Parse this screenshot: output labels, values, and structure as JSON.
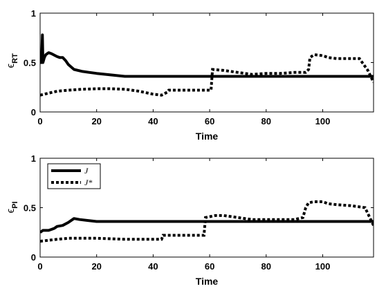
{
  "chart_data": [
    {
      "type": "line",
      "ylabel_symbol": "ϵ",
      "ylabel_sub": "RT",
      "xlabel": "Time",
      "xlim": [
        0,
        118
      ],
      "ylim": [
        0,
        1
      ],
      "xticks": [
        "0",
        "20",
        "40",
        "60",
        "80",
        "100"
      ],
      "yticks": [
        "0",
        "0.5",
        "1"
      ],
      "legend": false,
      "series": [
        {
          "style": "solid",
          "x": [
            0,
            0.5,
            0.8,
            1,
            1.5,
            2,
            3,
            4,
            6,
            7,
            8,
            9,
            10,
            12,
            15,
            20,
            25,
            30,
            40,
            60,
            80,
            100,
            118
          ],
          "y": [
            0.5,
            0.5,
            0.78,
            0.5,
            0.55,
            0.58,
            0.6,
            0.59,
            0.56,
            0.55,
            0.55,
            0.52,
            0.48,
            0.43,
            0.41,
            0.39,
            0.375,
            0.36,
            0.36,
            0.36,
            0.36,
            0.36,
            0.36
          ]
        },
        {
          "style": "dotted",
          "x": [
            0,
            3,
            6,
            10,
            15,
            20,
            25,
            30,
            35,
            40,
            43,
            45,
            45.5,
            52,
            55,
            60.5,
            61,
            65,
            70,
            75,
            80,
            85,
            90,
            94,
            95,
            95.5,
            97,
            100,
            102,
            105,
            110,
            113,
            116,
            118
          ],
          "y": [
            0.17,
            0.19,
            0.21,
            0.22,
            0.23,
            0.235,
            0.235,
            0.23,
            0.21,
            0.18,
            0.17,
            0.2,
            0.22,
            0.22,
            0.22,
            0.22,
            0.43,
            0.42,
            0.4,
            0.38,
            0.39,
            0.39,
            0.4,
            0.4,
            0.43,
            0.55,
            0.58,
            0.57,
            0.55,
            0.54,
            0.54,
            0.54,
            0.42,
            0.3
          ]
        }
      ]
    },
    {
      "type": "line",
      "ylabel_symbol": "ϵ",
      "ylabel_sub": "PI",
      "xlabel": "Time",
      "xlim": [
        0,
        118
      ],
      "ylim": [
        0,
        1
      ],
      "xticks": [
        "0",
        "20",
        "40",
        "60",
        "80",
        "100"
      ],
      "yticks": [
        "0",
        "0.5",
        "1"
      ],
      "legend": true,
      "legend_position": "top-left",
      "series": [
        {
          "name": "J",
          "style": "solid",
          "x": [
            0,
            1,
            2,
            3,
            4,
            5,
            6,
            8,
            10,
            12,
            14,
            17,
            20,
            40,
            60,
            80,
            100,
            118
          ],
          "y": [
            0.25,
            0.27,
            0.27,
            0.27,
            0.28,
            0.29,
            0.31,
            0.32,
            0.35,
            0.39,
            0.38,
            0.37,
            0.36,
            0.36,
            0.36,
            0.36,
            0.36,
            0.36
          ]
        },
        {
          "name": "J*",
          "style": "dotted",
          "x": [
            0,
            3,
            6,
            10,
            20,
            30,
            40,
            43,
            43.5,
            50,
            58,
            58.5,
            62,
            65,
            70,
            75,
            80,
            85,
            90,
            93,
            94,
            95,
            97,
            100,
            102,
            105,
            110,
            115,
            118
          ],
          "y": [
            0.16,
            0.17,
            0.18,
            0.19,
            0.19,
            0.18,
            0.18,
            0.18,
            0.22,
            0.22,
            0.22,
            0.4,
            0.42,
            0.42,
            0.4,
            0.38,
            0.38,
            0.38,
            0.38,
            0.4,
            0.5,
            0.55,
            0.56,
            0.56,
            0.54,
            0.53,
            0.52,
            0.5,
            0.32
          ]
        }
      ]
    }
  ]
}
